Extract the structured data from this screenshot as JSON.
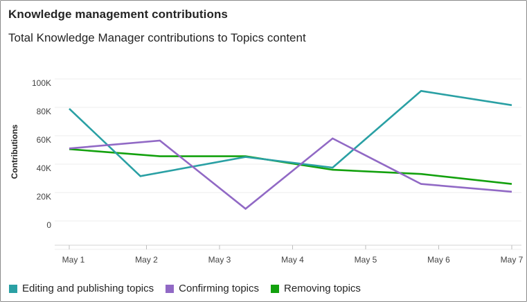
{
  "card": {
    "title": "Knowledge management contributions",
    "subtitle": "Total Knowledge Manager contributions to Topics content"
  },
  "chart_data": {
    "type": "line",
    "xlabel": "",
    "ylabel": "Contributions",
    "ylim": [
      -20000,
      110000
    ],
    "y_ticks": [
      0,
      20000,
      40000,
      60000,
      80000,
      100000
    ],
    "y_tick_labels": [
      "0",
      "20K",
      "40K",
      "60K",
      "80K",
      "100K"
    ],
    "x_ticks": [
      1,
      2,
      3,
      4,
      5,
      6,
      7
    ],
    "x_tick_labels": [
      "May 1",
      "May 2",
      "May 3",
      "May 4",
      "May 5",
      "May 6",
      "May 7"
    ],
    "xlim": [
      0.95,
      7.05
    ],
    "grid": true,
    "legend_placement": "bottom-left",
    "series": [
      {
        "name": "Editing and publishing topics",
        "color": "#2aa0a4",
        "x": [
          0.95,
          1.93,
          3.38,
          4.58,
          5.8,
          7.05
        ],
        "values": [
          82000,
          34500,
          48000,
          40500,
          94500,
          84500
        ]
      },
      {
        "name": "Confirming topics",
        "color": "#9169c5",
        "x": [
          0.95,
          2.2,
          3.38,
          4.58,
          5.8,
          7.05
        ],
        "values": [
          54000,
          59500,
          11500,
          61000,
          29000,
          23500
        ]
      },
      {
        "name": "Removing topics",
        "color": "#13a10e",
        "x": [
          0.95,
          2.2,
          3.38,
          4.58,
          5.8,
          7.05
        ],
        "values": [
          53500,
          48500,
          48500,
          39000,
          36000,
          29000
        ]
      }
    ]
  }
}
